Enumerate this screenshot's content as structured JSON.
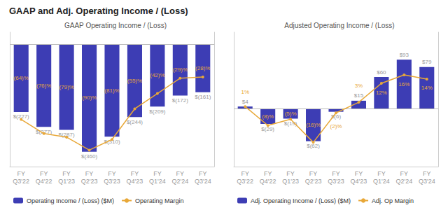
{
  "title": "GAAP and Adj. Operating Income / (Loss)",
  "chart_data": [
    {
      "type": "bar",
      "title": "GAAP Operating Income / (Loss)",
      "categories": [
        "FY\nQ3'22",
        "FY\nQ4'22",
        "FY\nQ1'23",
        "FY\nQ2'23",
        "FY\nQ3'23",
        "FY\nQ4'23",
        "FY\nQ1'24",
        "FY\nQ2'24",
        "FY\nQ3'24"
      ],
      "series": [
        {
          "name": "Operating Income / (Loss) ($M)",
          "type": "bar",
          "color": "#3D3DB4",
          "values": [
            -227,
            -277,
            -287,
            -360,
            -310,
            -244,
            -209,
            -172,
            -161
          ],
          "value_labels": [
            "$(227)",
            "$(277)",
            "$(287)",
            "$(360)",
            "$(310)",
            "$(244)",
            "$(209)",
            "$(172)",
            "$(161)"
          ]
        },
        {
          "name": "Operating Margin",
          "type": "line",
          "color": "#E8A838",
          "axis": "y2",
          "marker": "circle",
          "line_style": "solid",
          "values": [
            -64,
            -76,
            -79,
            -90,
            -81,
            -55,
            -42,
            -29,
            -28
          ],
          "value_labels": [
            "(64)%",
            "(76)%",
            "(79)%",
            "(90)%",
            "(81)%",
            "(55)%",
            "(42)%",
            "(29)%",
            "(28)%"
          ]
        }
      ],
      "ylim": [
        -410,
        40
      ],
      "y2lim": [
        -104,
        10
      ],
      "tick_labels": "x",
      "grid": false,
      "data_labels": true,
      "legend": "bottom"
    },
    {
      "type": "bar",
      "title": "Adjusted Operating Income / (Loss)",
      "categories": [
        "FY\nQ3'22",
        "FY\nQ4'22",
        "FY\nQ1'23",
        "FY\nQ2'23",
        "FY\nQ3'23",
        "FY\nQ4'23",
        "FY\nQ1'24",
        "FY\nQ2'24",
        "FY\nQ3'24"
      ],
      "series": [
        {
          "name": "Adj. Operating Income / (Loss) ($M)",
          "type": "bar",
          "color": "#3D3DB4",
          "values": [
            4,
            -29,
            -19,
            -62,
            -6,
            15,
            60,
            93,
            79
          ],
          "value_labels": [
            "$4",
            "$(29)",
            "$(19)",
            "$(62)",
            "$(6)",
            "$15",
            "$60",
            "$93",
            "$79"
          ]
        },
        {
          "name": "Adj. Op Margin",
          "type": "line",
          "color": "#E8A838",
          "axis": "y2",
          "marker": "circle",
          "line_style": "solid",
          "values": [
            1,
            -8,
            -5,
            -16,
            -2,
            3,
            12,
            16,
            14
          ],
          "value_labels": [
            "1%",
            "(8)%",
            "(5)%",
            "(16)%",
            "(2)%",
            "3%",
            "12%",
            "16%",
            "14%"
          ]
        }
      ],
      "ylim": [
        -110,
        145
      ],
      "y2lim": [
        -27.5,
        36.25
      ],
      "tick_labels": "x",
      "grid": false,
      "data_labels": true,
      "legend": "bottom"
    }
  ]
}
